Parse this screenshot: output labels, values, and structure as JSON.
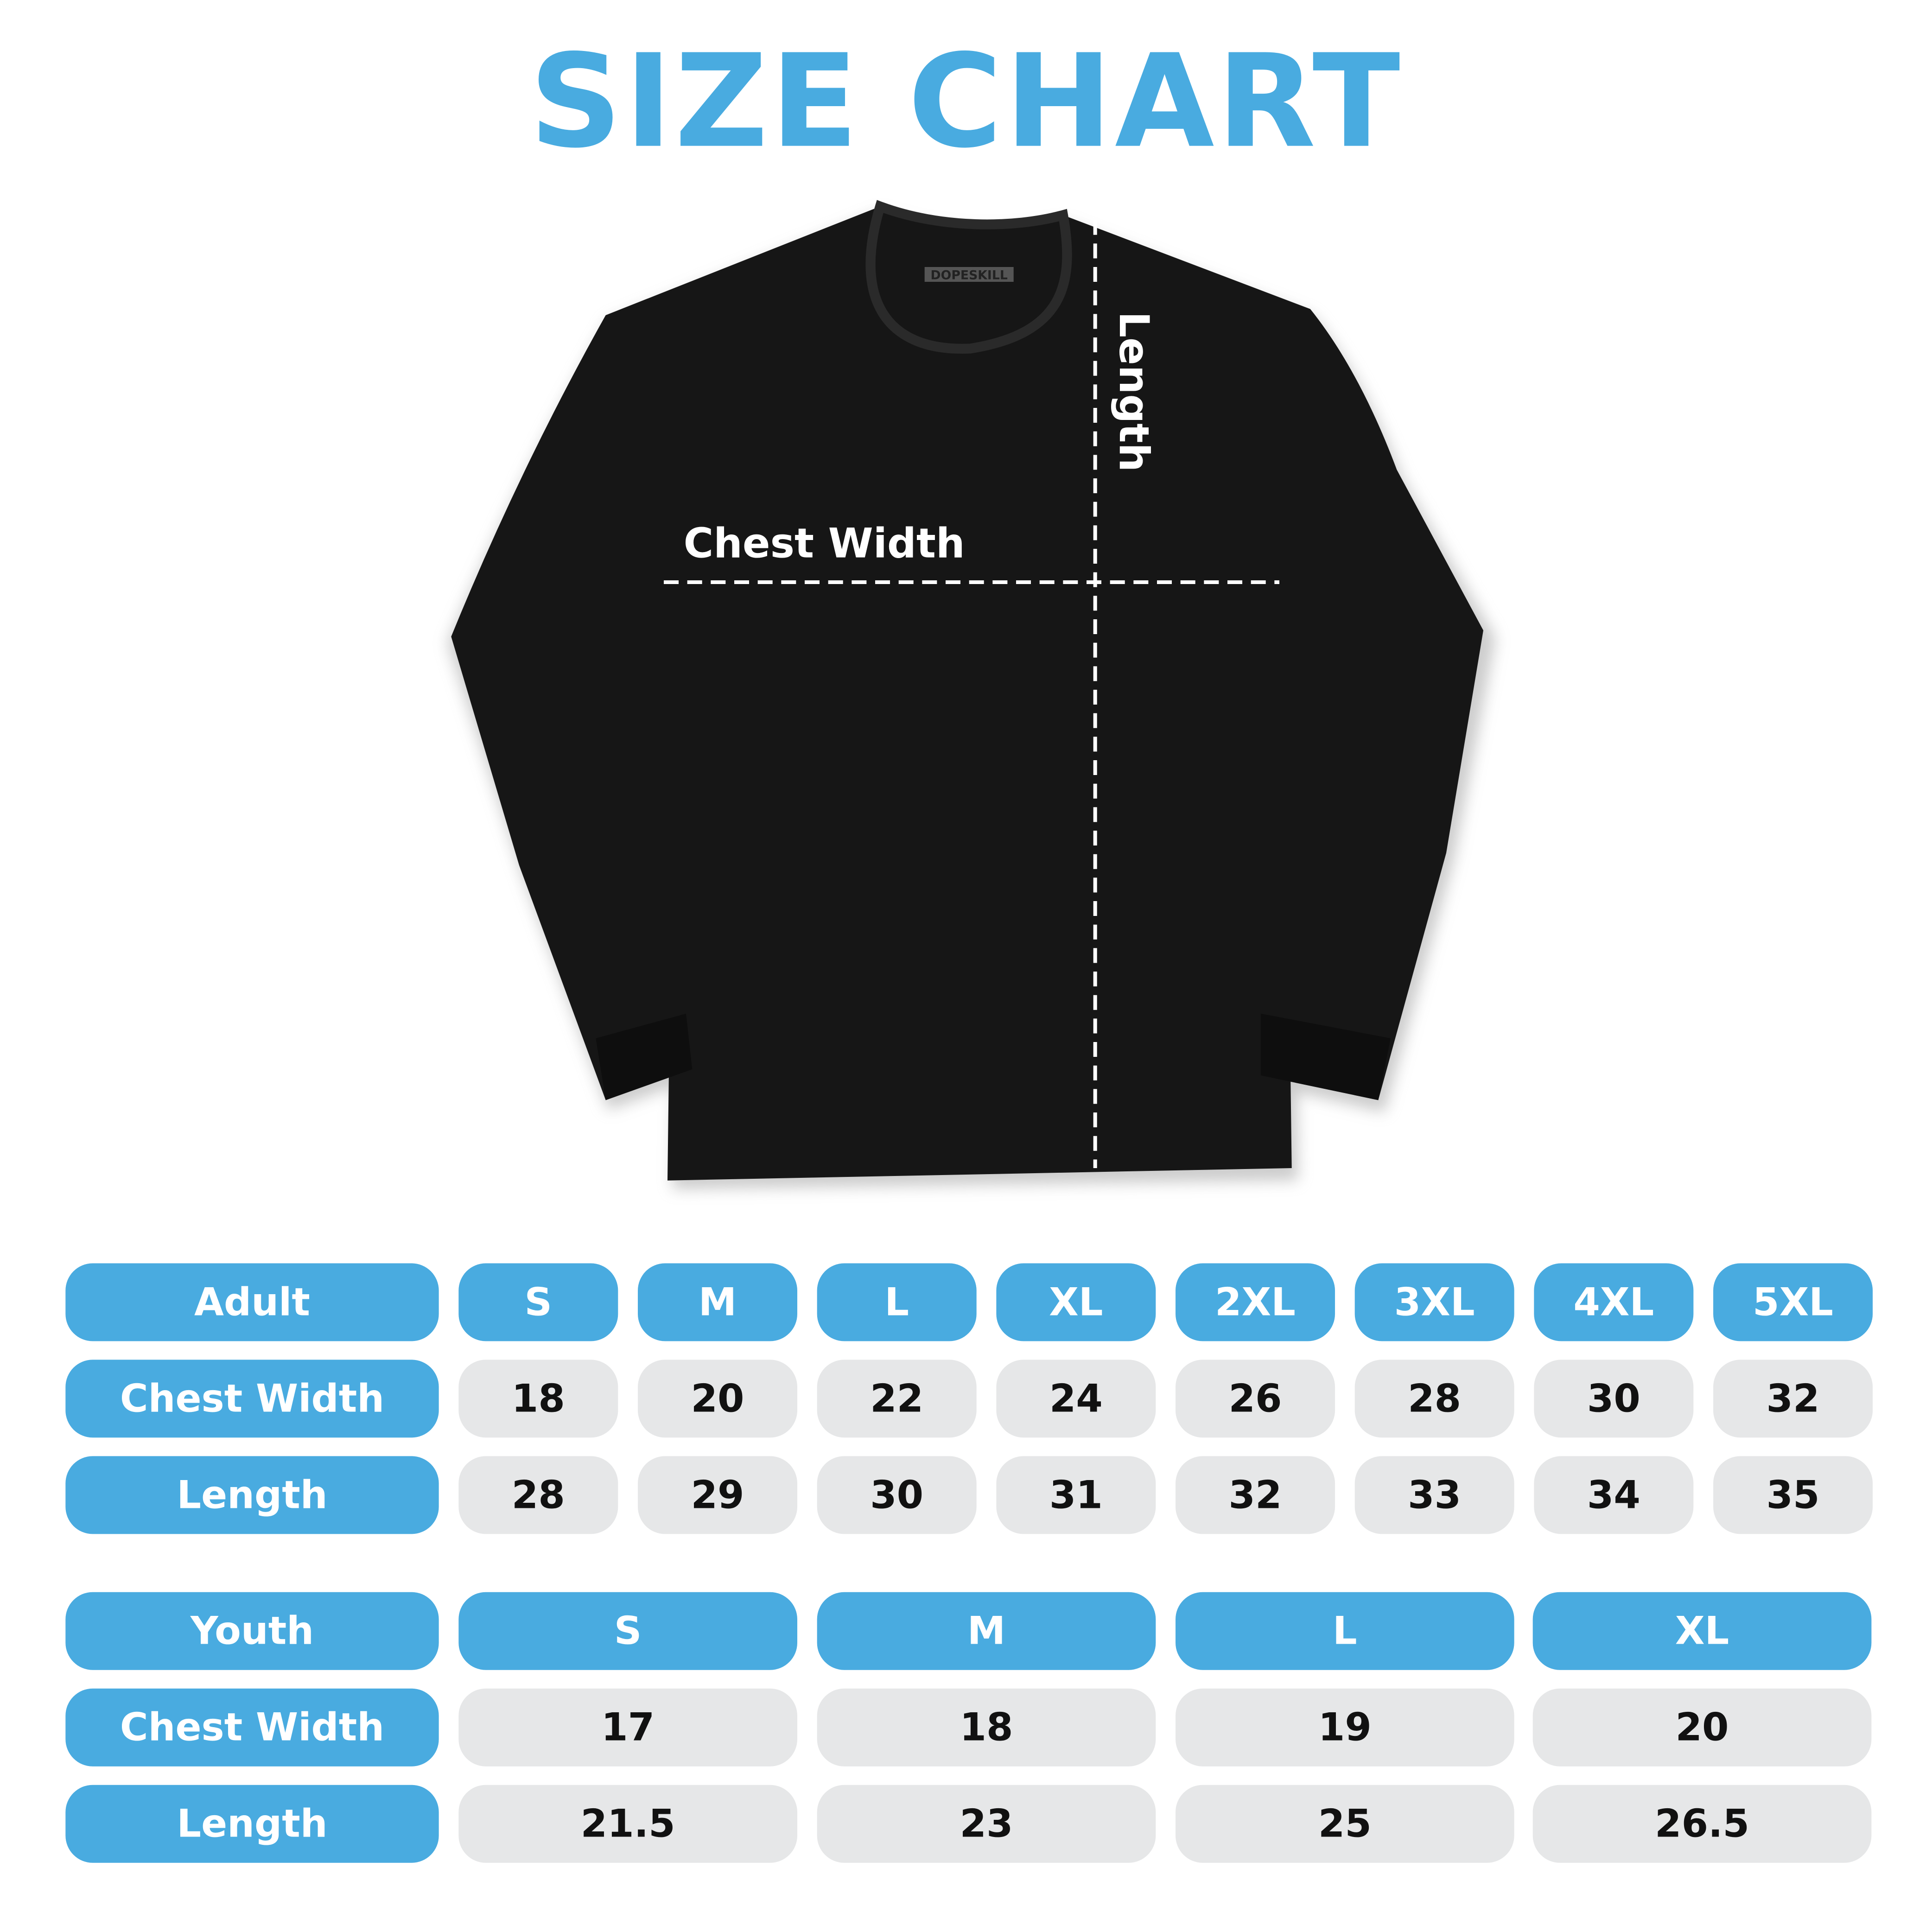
{
  "title": "SIZE CHART",
  "shirt": {
    "brand_tag": "DOPESKILL",
    "chest_label": "Chest Width",
    "length_label": "Length",
    "color": "#111111"
  },
  "colors": {
    "accent": "#49ABE0",
    "cell_bg": "#E6E7E8"
  },
  "adult": {
    "header": "Adult",
    "sizes": [
      "S",
      "M",
      "L",
      "XL",
      "2XL",
      "3XL",
      "4XL",
      "5XL"
    ],
    "rows": [
      {
        "label": "Chest Width",
        "values": [
          "18",
          "20",
          "22",
          "24",
          "26",
          "28",
          "30",
          "32"
        ]
      },
      {
        "label": "Length",
        "values": [
          "28",
          "29",
          "30",
          "31",
          "32",
          "33",
          "34",
          "35"
        ]
      }
    ]
  },
  "youth": {
    "header": "Youth",
    "sizes": [
      "S",
      "M",
      "L",
      "XL"
    ],
    "rows": [
      {
        "label": "Chest Width",
        "values": [
          "17",
          "18",
          "19",
          "20"
        ]
      },
      {
        "label": "Length",
        "values": [
          "21.5",
          "23",
          "25",
          "26.5"
        ]
      }
    ]
  }
}
